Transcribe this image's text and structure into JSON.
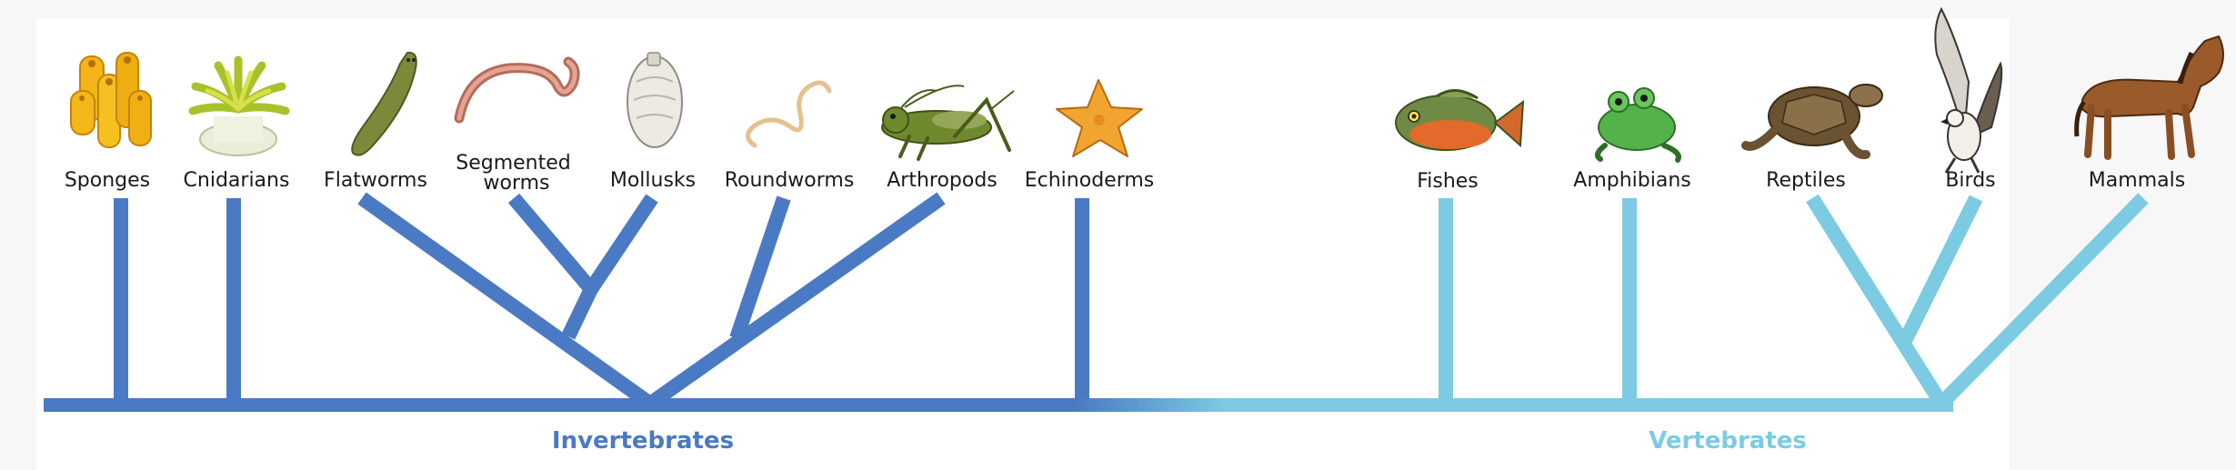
{
  "groups": {
    "invertebrates": {
      "label": "Invertebrates",
      "color": "#4a7ac3"
    },
    "vertebrates": {
      "label": "Vertebrates",
      "color": "#7ccbe3"
    }
  },
  "taxa": [
    {
      "id": "sponges",
      "label": "Sponges",
      "icon": "sponge-icon"
    },
    {
      "id": "cnidarians",
      "label": "Cnidarians",
      "icon": "sea-anemone-icon"
    },
    {
      "id": "flatworms",
      "label": "Flatworms",
      "icon": "flatworm-icon"
    },
    {
      "id": "segmented-worms",
      "label": "Segmented worms",
      "icon": "earthworm-icon"
    },
    {
      "id": "mollusks",
      "label": "Mollusks",
      "icon": "clam-shell-icon"
    },
    {
      "id": "roundworms",
      "label": "Roundworms",
      "icon": "roundworm-icon"
    },
    {
      "id": "arthropods",
      "label": "Arthropods",
      "icon": "grasshopper-icon"
    },
    {
      "id": "echinoderms",
      "label": "Echinoderms",
      "icon": "starfish-icon"
    },
    {
      "id": "fishes",
      "label": "Fishes",
      "icon": "fish-icon"
    },
    {
      "id": "amphibians",
      "label": "Amphibians",
      "icon": "frog-icon"
    },
    {
      "id": "reptiles",
      "label": "Reptiles",
      "icon": "turtle-icon"
    },
    {
      "id": "birds",
      "label": "Birds",
      "icon": "bird-icon"
    },
    {
      "id": "mammals",
      "label": "Mammals",
      "icon": "horse-icon"
    }
  ]
}
